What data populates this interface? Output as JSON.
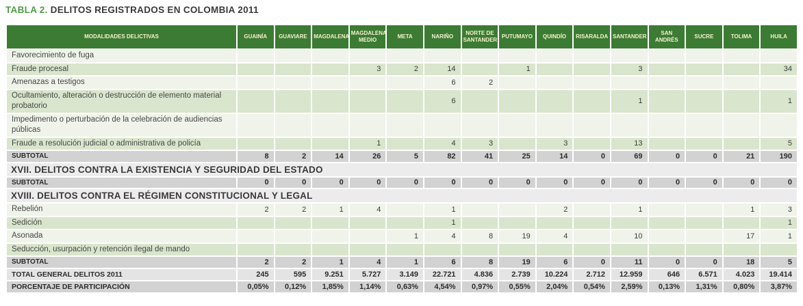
{
  "title": {
    "tabla": "TABLA 2.",
    "text": "DELITOS REGISTRADOS EN COLOMBIA 2011"
  },
  "columns": {
    "modalidades": "MODALIDADES DELICTIVAS",
    "departments": [
      "GUAINÍA",
      "GUAVIARE",
      "MAGDALENA",
      "MAGDALENA MEDIO",
      "META",
      "NARIÑO",
      "NORTE DE SANTANDER",
      "PUTUMAYO",
      "QUINDÍO",
      "RISARALDA",
      "SANTANDER",
      "SAN ANDRÉS",
      "SUCRE",
      "TOLIMA",
      "HUILA"
    ]
  },
  "rows": [
    {
      "type": "data",
      "label": "Favorecimiento de fuga",
      "values": [
        "",
        "",
        "",
        "",
        "",
        "",
        "",
        "",
        "",
        "",
        "",
        "",
        "",
        "",
        ""
      ]
    },
    {
      "type": "data",
      "label": "Fraude procesal",
      "values": [
        "",
        "",
        "",
        "3",
        "2",
        "14",
        "",
        "1",
        "",
        "",
        "3",
        "",
        "",
        "",
        "34"
      ]
    },
    {
      "type": "data",
      "label": "Amenazas a testigos",
      "values": [
        "",
        "",
        "",
        "",
        "",
        "6",
        "2",
        "",
        "",
        "",
        "",
        "",
        "",
        "",
        ""
      ]
    },
    {
      "type": "data",
      "label": "Ocultamiento, alteración o destrucción de elemento material probatorio",
      "values": [
        "",
        "",
        "",
        "",
        "",
        "6",
        "",
        "",
        "",
        "",
        "1",
        "",
        "",
        "",
        "1"
      ]
    },
    {
      "type": "data",
      "label": "Impedimento o perturbación de la celebración de audiencias públicas",
      "values": [
        "",
        "",
        "",
        "",
        "",
        "",
        "",
        "",
        "",
        "",
        "",
        "",
        "",
        "",
        ""
      ]
    },
    {
      "type": "data",
      "label": "Fraude a resolución judicial o administrativa de policía",
      "values": [
        "",
        "",
        "",
        "1",
        "",
        "4",
        "3",
        "",
        "3",
        "",
        "13",
        "",
        "",
        "",
        "5"
      ]
    },
    {
      "type": "subtotal",
      "label": "SUBTOTAL",
      "values": [
        "8",
        "2",
        "14",
        "26",
        "5",
        "82",
        "41",
        "25",
        "14",
        "0",
        "69",
        "0",
        "0",
        "21",
        "190"
      ]
    },
    {
      "type": "section",
      "label": "XVII. DELITOS CONTRA LA EXISTENCIA Y SEGURIDAD DEL ESTADO"
    },
    {
      "type": "subtotal",
      "label": "SUBTOTAL",
      "values": [
        "0",
        "0",
        "0",
        "0",
        "0",
        "0",
        "0",
        "0",
        "0",
        "0",
        "0",
        "0",
        "0",
        "0",
        "0"
      ]
    },
    {
      "type": "section",
      "label": "XVIII. DELITOS CONTRA EL RÉGIMEN CONSTITUCIONAL Y LEGAL"
    },
    {
      "type": "data",
      "label": "Rebelión",
      "values": [
        "2",
        "2",
        "1",
        "4",
        "",
        "1",
        "",
        "",
        "2",
        "",
        "1",
        "",
        "",
        "1",
        "3"
      ]
    },
    {
      "type": "data",
      "label": "Sedición",
      "values": [
        "",
        "",
        "",
        "",
        "",
        "1",
        "",
        "",
        "",
        "",
        "",
        "",
        "",
        "",
        "1"
      ]
    },
    {
      "type": "data",
      "label": "Asonada",
      "values": [
        "",
        "",
        "",
        "",
        "1",
        "4",
        "8",
        "19",
        "4",
        "",
        "10",
        "",
        "",
        "17",
        "1"
      ]
    },
    {
      "type": "data",
      "label": "Seducción, usurpación y retención ilegal de mando",
      "values": [
        "",
        "",
        "",
        "",
        "",
        "",
        "",
        "",
        "",
        "",
        "",
        "",
        "",
        "",
        ""
      ]
    },
    {
      "type": "subtotal",
      "label": "SUBTOTAL",
      "values": [
        "2",
        "2",
        "1",
        "4",
        "1",
        "6",
        "8",
        "19",
        "6",
        "0",
        "11",
        "0",
        "0",
        "18",
        "5"
      ]
    },
    {
      "type": "total",
      "label": "TOTAL GENERAL DELITOS 2011",
      "values": [
        "245",
        "595",
        "9.251",
        "5.727",
        "3.149",
        "22.721",
        "4.836",
        "2.739",
        "10.224",
        "2.712",
        "12.959",
        "646",
        "6.571",
        "4.023",
        "19.414"
      ]
    },
    {
      "type": "percent",
      "label": "PORCENTAJE DE PARTICIPACIÓN",
      "values": [
        "0,05%",
        "0,12%",
        "1,85%",
        "1,14%",
        "0,63%",
        "4,54%",
        "0,97%",
        "0,55%",
        "2,04%",
        "0,54%",
        "2,59%",
        "0,13%",
        "1,31%",
        "0,80%",
        "3,87%"
      ]
    }
  ],
  "colors": {
    "header_bg": "#3c7b34",
    "header_text": "#f6f2cf",
    "row_pale": "#eff3e9",
    "row_green": "#d9e5cc",
    "subtotal_bg": "#d2d2d2",
    "total_bg": "#e4e4e4",
    "section_bg": "#ececec",
    "title_green": "#4d9b44",
    "title_dark": "#3a3a3a"
  }
}
